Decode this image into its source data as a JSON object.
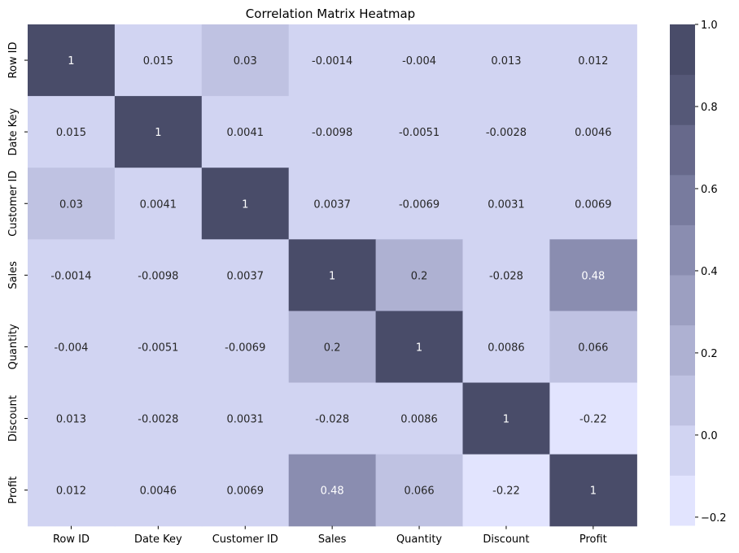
{
  "chart_data": {
    "type": "heatmap",
    "title": "Correlation Matrix Heatmap",
    "xlabel": "",
    "ylabel": "",
    "labels": [
      "Row ID",
      "Date Key",
      "Customer ID",
      "Sales",
      "Quantity",
      "Discount",
      "Profit"
    ],
    "matrix": [
      [
        "1",
        "0.015",
        "0.03",
        "-0.0014",
        "-0.004",
        "0.013",
        "0.012"
      ],
      [
        "0.015",
        "1",
        "0.0041",
        "-0.0098",
        "-0.0051",
        "-0.0028",
        "0.0046"
      ],
      [
        "0.03",
        "0.0041",
        "1",
        "0.0037",
        "-0.0069",
        "0.0031",
        "0.0069"
      ],
      [
        "-0.0014",
        "-0.0098",
        "0.0037",
        "1",
        "0.2",
        "-0.028",
        "0.48"
      ],
      [
        "-0.004",
        "-0.0051",
        "-0.0069",
        "0.2",
        "1",
        "0.0086",
        "0.066"
      ],
      [
        "0.013",
        "-0.0028",
        "0.0031",
        "-0.028",
        "0.0086",
        "1",
        "-0.22"
      ],
      [
        "0.012",
        "0.0046",
        "0.0069",
        "0.48",
        "0.066",
        "-0.22",
        "1"
      ]
    ],
    "colorbar": {
      "min": -0.22,
      "max": 1.0,
      "ticks": [
        "1.0",
        "0.8",
        "0.6",
        "0.4",
        "0.2",
        "0.0",
        "−0.2"
      ],
      "tick_values": [
        1.0,
        0.8,
        0.6,
        0.4,
        0.2,
        0.0,
        -0.2
      ],
      "colors": [
        "#e2e4fe",
        "#d1d4f2",
        "#bfc2e2",
        "#aeb1d2",
        "#9c9fc1",
        "#8a8db0",
        "#787b9e",
        "#67698b",
        "#555877",
        "#494c69"
      ]
    }
  }
}
